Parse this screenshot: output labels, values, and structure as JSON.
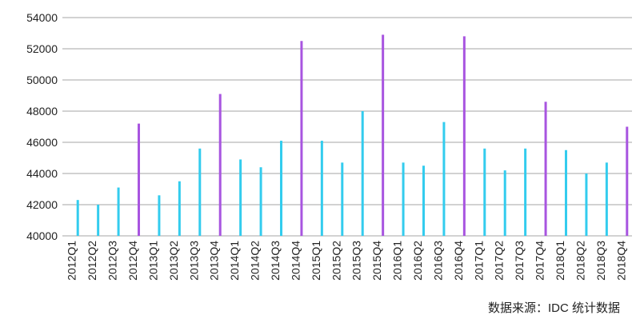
{
  "chart_data": {
    "type": "bar",
    "categories": [
      "2012Q1",
      "2012Q2",
      "2012Q3",
      "2012Q4",
      "2013Q1",
      "2013Q2",
      "2013Q3",
      "2013Q4",
      "2014Q1",
      "2014Q2",
      "2014Q3",
      "2014Q4",
      "2015Q1",
      "2015Q2",
      "2015Q3",
      "2015Q4",
      "2016Q1",
      "2016Q2",
      "2016Q3",
      "2016Q4",
      "2017Q1",
      "2017Q2",
      "2017Q3",
      "2017Q4",
      "2018Q1",
      "2018Q2",
      "2018Q3",
      "2018Q4"
    ],
    "values": [
      42300,
      42000,
      43100,
      47200,
      42600,
      43500,
      45600,
      49100,
      44900,
      44400,
      46100,
      52500,
      46100,
      44700,
      48000,
      52900,
      44700,
      44500,
      47300,
      52800,
      45600,
      44200,
      45600,
      48600,
      45500,
      44000,
      44700,
      47000
    ],
    "colors": [
      "#33ccee",
      "#33ccee",
      "#33ccee",
      "#a855e0",
      "#33ccee",
      "#33ccee",
      "#33ccee",
      "#a855e0",
      "#33ccee",
      "#33ccee",
      "#33ccee",
      "#a855e0",
      "#33ccee",
      "#33ccee",
      "#33ccee",
      "#a855e0",
      "#33ccee",
      "#33ccee",
      "#33ccee",
      "#a855e0",
      "#33ccee",
      "#33ccee",
      "#33ccee",
      "#a855e0",
      "#33ccee",
      "#33ccee",
      "#33ccee",
      "#a855e0"
    ],
    "ylim": [
      40000,
      54000
    ],
    "yticks": [
      40000,
      42000,
      44000,
      46000,
      48000,
      50000,
      52000,
      54000
    ],
    "grid": true,
    "source": "数据来源：IDC 统计数据"
  }
}
